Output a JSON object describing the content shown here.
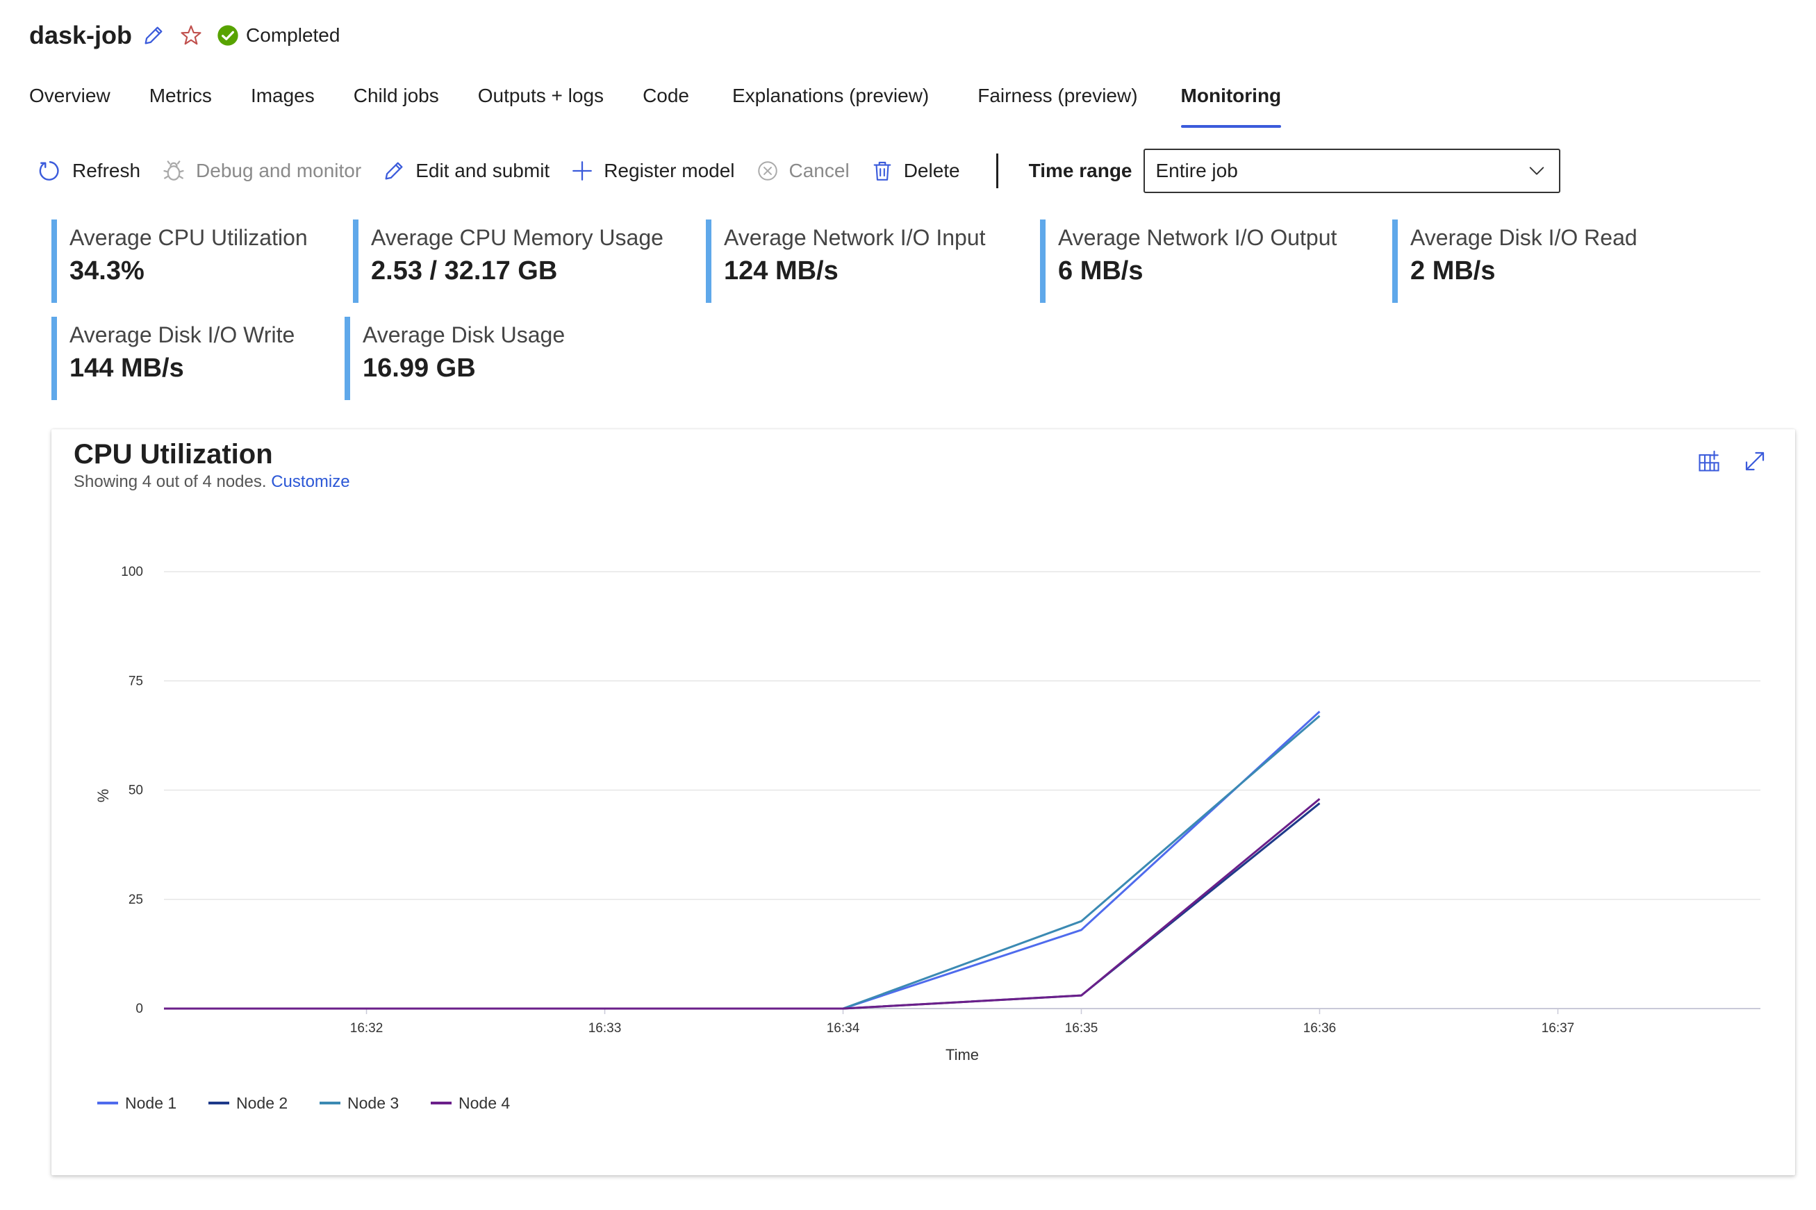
{
  "header": {
    "title": "dask-job",
    "status": "Completed"
  },
  "tabs": [
    {
      "label": "Overview",
      "active": false
    },
    {
      "label": "Metrics",
      "active": false
    },
    {
      "label": "Images",
      "active": false
    },
    {
      "label": "Child jobs",
      "active": false
    },
    {
      "label": "Outputs + logs",
      "active": false
    },
    {
      "label": "Code",
      "active": false
    },
    {
      "label": "Explanations (preview)",
      "active": false
    },
    {
      "label": "Fairness (preview)",
      "active": false
    },
    {
      "label": "Monitoring",
      "active": true
    }
  ],
  "toolbar": {
    "refresh": "Refresh",
    "debug": "Debug and monitor",
    "edit": "Edit and submit",
    "register": "Register model",
    "cancel": "Cancel",
    "delete": "Delete",
    "time_range_label": "Time range",
    "time_range_value": "Entire job"
  },
  "metrics": [
    {
      "label": "Average CPU Utilization",
      "value": "34.3%"
    },
    {
      "label": "Average CPU Memory Usage",
      "value": "2.53 / 32.17 GB"
    },
    {
      "label": "Average Network I/O Input",
      "value": "124 MB/s"
    },
    {
      "label": "Average Network I/O Output",
      "value": "6 MB/s"
    },
    {
      "label": "Average Disk I/O Read",
      "value": "2 MB/s"
    },
    {
      "label": "Average Disk I/O Write",
      "value": "144 MB/s"
    },
    {
      "label": "Average Disk Usage",
      "value": "16.99 GB"
    }
  ],
  "chart_card": {
    "title": "CPU Utilization",
    "subtitle": "Showing 4 out of 4 nodes.",
    "customize": "Customize"
  },
  "colors": {
    "accent": "#3b5bdb",
    "metric_bar": "#5fa8ea",
    "status_green": "#57a300",
    "star": "#c0504d",
    "link": "#2b57d6"
  },
  "chart_data": {
    "type": "line",
    "title": "CPU Utilization",
    "xlabel": "Time",
    "ylabel": "%",
    "ylim": [
      0,
      100
    ],
    "yticks": [
      0,
      25,
      50,
      75,
      100
    ],
    "xticks": [
      "16:32",
      "16:33",
      "16:34",
      "16:35",
      "16:36",
      "16:37"
    ],
    "xlim": [
      "16:31:09",
      "16:37:51"
    ],
    "x": [
      "16:31:09",
      "16:34",
      "16:35",
      "16:36"
    ],
    "grid": true,
    "legend": "bottom-left",
    "series": [
      {
        "name": "Node 1",
        "color": "#4f6bed",
        "values": [
          0,
          0,
          18,
          68
        ]
      },
      {
        "name": "Node 2",
        "color": "#1e3a8a",
        "values": [
          0,
          0,
          3,
          47
        ]
      },
      {
        "name": "Node 3",
        "color": "#3b8ab3",
        "values": [
          0,
          0,
          20,
          67
        ]
      },
      {
        "name": "Node 4",
        "color": "#6b1f8a",
        "values": [
          0,
          0,
          3,
          48
        ]
      }
    ]
  }
}
